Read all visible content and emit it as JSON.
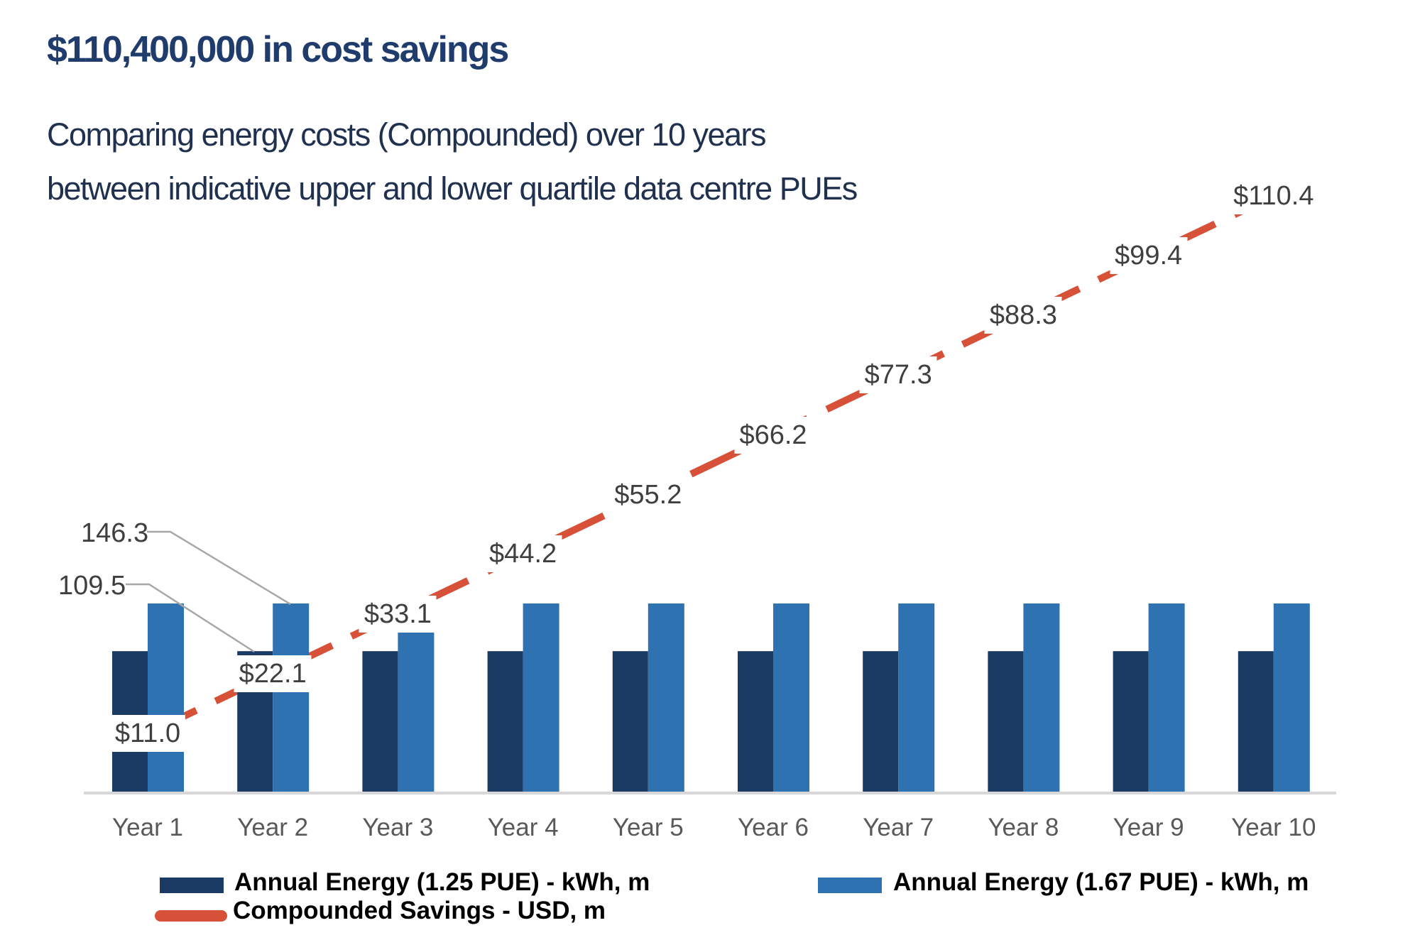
{
  "header": {
    "title": "$110,400,000 in cost savings",
    "subtitle_line1": "Comparing energy costs (Compounded) over 10 years",
    "subtitle_line2": "between indicative upper and lower quartile data centre PUEs"
  },
  "chart_data": {
    "type": "bar",
    "subtype": "grouped-bars-with-dashed-line-overlay",
    "categories": [
      "Year 1",
      "Year 2",
      "Year 3",
      "Year 4",
      "Year 5",
      "Year 6",
      "Year 7",
      "Year 8",
      "Year 9",
      "Year 10"
    ],
    "bar_series": [
      {
        "name": "Annual Energy (1.25 PUE) - kWh, m",
        "color": "#1B3A64",
        "values": [
          109.5,
          109.5,
          109.5,
          109.5,
          109.5,
          109.5,
          109.5,
          109.5,
          109.5,
          109.5
        ]
      },
      {
        "name": "Annual Energy (1.67 PUE) - kWh, m",
        "color": "#2E72B1",
        "values": [
          146.3,
          146.3,
          146.3,
          146.3,
          146.3,
          146.3,
          146.3,
          146.3,
          146.3,
          146.3
        ]
      }
    ],
    "line_series": {
      "name": "Compounded Savings - USD, m",
      "color": "#D75038",
      "style": "dashed",
      "values": [
        11.0,
        22.1,
        33.1,
        44.2,
        55.2,
        66.2,
        77.3,
        88.3,
        99.4,
        110.4
      ],
      "point_labels": [
        "$11.0",
        "$22.1",
        "$33.1",
        "$44.2",
        "$55.2",
        "$66.2",
        "$77.3",
        "$88.3",
        "$99.4",
        "$110.4"
      ]
    },
    "bar_value_callouts": [
      {
        "label": "146.3",
        "target_series": "Annual Energy (1.67 PUE) - kWh, m",
        "target_category": "Year 2"
      },
      {
        "label": "109.5",
        "target_series": "Annual Energy (1.25 PUE) - kWh, m",
        "target_category": "Year 2"
      }
    ],
    "axes": {
      "x_axis_line_visible": true,
      "y_axis_labels_visible": false,
      "gridlines": false,
      "bar_axis_range": [
        0,
        160
      ],
      "line_axis_range": [
        0,
        120
      ]
    },
    "legend_position": "bottom",
    "style_colors": {
      "data_label_text": "#3F3F3F",
      "axis_label_text": "#595959",
      "axis_line": "#D8D8D8",
      "leader_line": "#A8A8A8"
    }
  },
  "legend": {
    "bar1_label": "Annual Energy (1.25 PUE) - kWh, m",
    "bar2_label": "Annual Energy (1.67 PUE) - kWh, m",
    "line_label": "Compounded Savings - USD, m"
  }
}
